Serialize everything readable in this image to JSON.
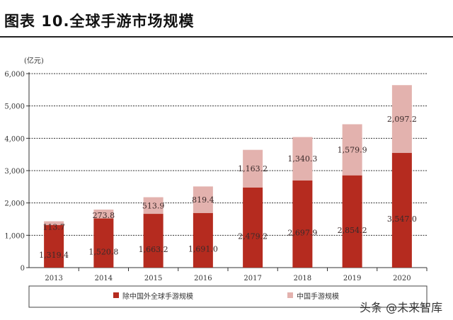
{
  "header": {
    "title": "图表 10.全球手游市场规模"
  },
  "watermark": "头条 @未来智库",
  "chart_data": {
    "type": "bar",
    "stacked": true,
    "title": "全球手游市场规模",
    "ylabel": "(亿元)",
    "xlabel": "",
    "ylim": [
      0,
      6000
    ],
    "yticks": [
      "0",
      "1,000",
      "2,000",
      "3,000",
      "4,000",
      "5,000",
      "6,000"
    ],
    "ytick_values": [
      0,
      1000,
      2000,
      3000,
      4000,
      5000,
      6000
    ],
    "grid": true,
    "legend_position": "bottom",
    "categories": [
      "2013",
      "2014",
      "2015",
      "2016",
      "2017",
      "2018",
      "2019",
      "2020"
    ],
    "series": [
      {
        "name": "除中国外全球手游规模",
        "color": "#b52b1f",
        "values": [
          1319.4,
          1520.8,
          1663.2,
          1691.0,
          2479.2,
          2697.9,
          2854.2,
          3547.0
        ],
        "labels": [
          "1,319.4",
          "1,520.8",
          "1,663.2",
          "1,691.0",
          "2,479.2",
          "2,697.9",
          "2,854.2",
          "3,547.0"
        ]
      },
      {
        "name": "中国手游规模",
        "color": "#e3b2ae",
        "values": [
          113.7,
          273.8,
          513.9,
          819.4,
          1163.2,
          1340.3,
          1579.9,
          2097.2
        ],
        "labels": [
          "113.7",
          "273.8",
          "513.9",
          "819.4",
          "1,163.2",
          "1,340.3",
          "1,579.9",
          "2,097.2"
        ]
      }
    ]
  }
}
